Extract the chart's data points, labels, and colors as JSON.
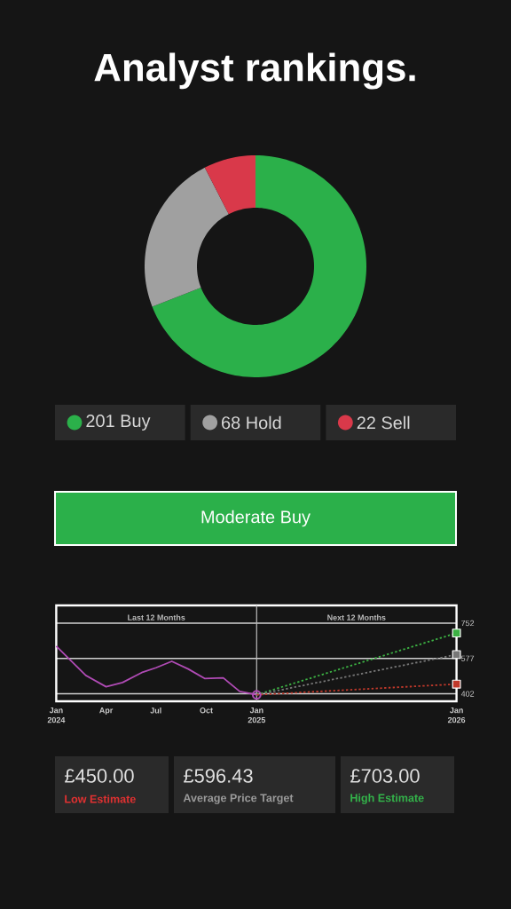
{
  "chart_data": [
    {
      "type": "donut",
      "title": "Analyst rankings.",
      "categories": [
        "Buy",
        "Hold",
        "Sell"
      ],
      "values": [
        201,
        68,
        22
      ],
      "colors": [
        "#2bb04a",
        "#a0a0a0",
        "#d9394a"
      ],
      "value_labels": [
        "201",
        "68",
        "22"
      ],
      "legend": "bottom",
      "annotations": [
        "Moderate Buy"
      ]
    },
    {
      "type": "line",
      "xlim": [
        "2024-01-01",
        "2026-01-01"
      ],
      "ylim": [
        365,
        840
      ],
      "xticks": [
        {
          "value": "2024-01-01",
          "label": "Jan 2024"
        },
        {
          "value": "2024-04-01",
          "label": "Apr"
        },
        {
          "value": "2024-07-01",
          "label": "Jul"
        },
        {
          "value": "2024-10-01",
          "label": "Oct"
        },
        {
          "value": "2025-01-01",
          "label": "Jan 2025"
        },
        {
          "value": "2026-01-01",
          "label": "Jan 2026"
        }
      ],
      "yticks": [
        402,
        577,
        752
      ],
      "grid": "y",
      "ref_lines": [
        {
          "axis": "x",
          "value": "2025-01-01",
          "color": "#bbbbbb"
        }
      ],
      "annotations": [
        "Last 12 Months",
        "Next 12 Months"
      ],
      "series": [
        {
          "color": "#b04bb5",
          "marker": "none",
          "line_style": "solid",
          "x": [
            "2024-01-01",
            "2024-02-24",
            "2024-04-01",
            "2024-05-01",
            "2024-06-05",
            "2024-07-01",
            "2024-07-30",
            "2024-08-29",
            "2024-09-28",
            "2024-11-01",
            "2024-12-01",
            "2025-01-01"
          ],
          "values": [
            638,
            493,
            437,
            458,
            507,
            531,
            563,
            525,
            478,
            481,
            414,
            397
          ]
        },
        {
          "color": "#3cb043",
          "marker": "square",
          "line_style": "dotted",
          "x": [
            "2025-01-01",
            "2026-01-01"
          ],
          "values": [
            397,
            703
          ]
        },
        {
          "color": "#777777",
          "marker": "square",
          "line_style": "dotted",
          "x": [
            "2025-01-01",
            "2026-01-01"
          ],
          "values": [
            397,
            596.43
          ]
        },
        {
          "color": "#c0392b",
          "marker": "square",
          "line_style": "dotted",
          "x": [
            "2025-01-01",
            "2026-01-01"
          ],
          "values": [
            397,
            450
          ]
        },
        {
          "type": "scatter",
          "color": "#b04bb5",
          "marker": "circle",
          "x": [
            "2025-01-01"
          ],
          "values": [
            397
          ]
        }
      ]
    },
    {
      "type": "other",
      "annotations": [
        "£450.00",
        "Low Estimate",
        "£596.43",
        "Average Price Target",
        "£703.00",
        "High Estimate"
      ]
    }
  ]
}
